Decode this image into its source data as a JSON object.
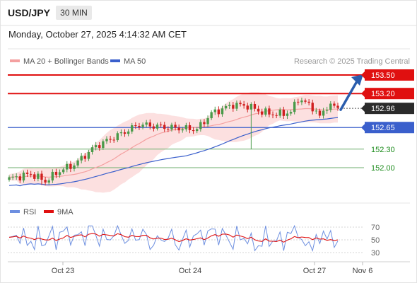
{
  "header": {
    "symbol": "USD/JPY",
    "timeframe": "30 MIN"
  },
  "datetime": "Monday, October 27, 2025 4:14:32 AM CET",
  "legend": {
    "ma20_bb": "MA 20 + Bollinger Bands",
    "ma50": "MA 50",
    "rsi": "RSI",
    "nine_ma": "9MA"
  },
  "credit": "Research © 2025 Trading Central",
  "colors": {
    "resistance": "#e01010",
    "support_line": "#3a5fcc",
    "support_thin": "#6cae6c",
    "bb_fill": "#fbdada",
    "ma20": "#f4a0a0",
    "ma50": "#3a5fcc",
    "candle_up": "#4a9a4a",
    "candle_down": "#d02020",
    "arrow": "#2a5dad",
    "rsi": "#6d8fe0",
    "nine_ma": "#e01010"
  },
  "chart_data": [
    {
      "type": "candlestick",
      "price_axis_range": [
        151.7,
        153.65
      ],
      "x_labels": [
        "Oct 23",
        "Oct 24",
        "Oct 27",
        "Nov 6"
      ],
      "levels": [
        {
          "value": 153.5,
          "label": "153.50",
          "kind": "resistance"
        },
        {
          "value": 153.2,
          "label": "153.20",
          "kind": "resistance"
        },
        {
          "value": 152.96,
          "label": "152.96",
          "kind": "current"
        },
        {
          "value": 152.65,
          "label": "152.65",
          "kind": "pivot"
        },
        {
          "value": 152.3,
          "label": "152.30",
          "kind": "support"
        },
        {
          "value": 152.0,
          "label": "152.00",
          "kind": "support"
        }
      ],
      "forecast_arrow": {
        "from": 152.96,
        "to": 153.5
      }
    },
    {
      "type": "line",
      "name": "RSI",
      "y_ticks": [
        "70",
        "50",
        "30"
      ],
      "y_range": [
        20,
        80
      ]
    }
  ]
}
